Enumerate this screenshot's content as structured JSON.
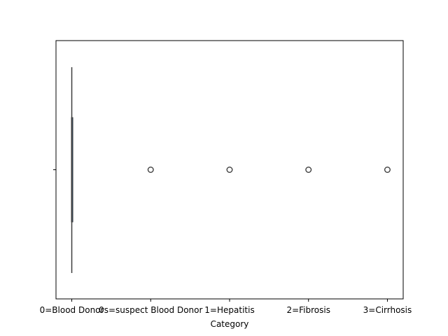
{
  "chart_data": {
    "type": "boxplot",
    "orientation": "horizontal",
    "xlabel": "Category",
    "ylabel": "",
    "categories": [
      "0=Blood Donor",
      "0s=suspect Blood Donor",
      "1=Hepatitis",
      "2=Fibrosis",
      "3=Cirrhosis"
    ],
    "xlim": [
      -0.2,
      4.2
    ],
    "box": {
      "min": 0,
      "q1": 0,
      "median": 0,
      "q3": 0,
      "max": 0
    },
    "outliers": [
      1,
      2,
      3,
      4
    ],
    "grid": false,
    "colors": {
      "box": "#3b75af",
      "outlier_edge": "#3d3d3d",
      "axis": "#000000"
    }
  }
}
